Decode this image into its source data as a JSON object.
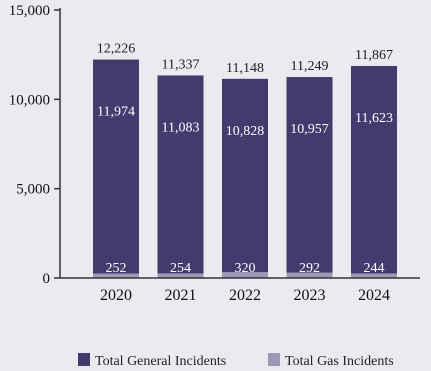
{
  "chart_data": {
    "type": "bar",
    "stacked": true,
    "categories": [
      "2020",
      "2021",
      "2022",
      "2023",
      "2024"
    ],
    "series": [
      {
        "name": "Total General Incidents",
        "values": [
          11974,
          11083,
          10828,
          10957,
          11623
        ],
        "labels": [
          "11,974",
          "11,083",
          "10,828",
          "10,957",
          "11,623"
        ],
        "color": "#413b6e"
      },
      {
        "name": "Total Gas Incidents",
        "values": [
          252,
          254,
          320,
          292,
          244
        ],
        "labels": [
          "252",
          "254",
          "320",
          "292",
          "244"
        ],
        "color": "#9c98b6"
      }
    ],
    "totals": [
      12226,
      11337,
      11148,
      11249,
      11867
    ],
    "total_labels": [
      "12,226",
      "11,337",
      "11,148",
      "11,249",
      "11,867"
    ],
    "yticks": [
      {
        "value": 0,
        "label": "0"
      },
      {
        "value": 5000,
        "label": "5,000"
      },
      {
        "value": 10000,
        "label": "10,000"
      },
      {
        "value": 15000,
        "label": "15,000"
      }
    ],
    "ylim": [
      0,
      15000
    ],
    "grid": false,
    "legend": {
      "placement": "bottom"
    },
    "axis_color": "#333333"
  }
}
